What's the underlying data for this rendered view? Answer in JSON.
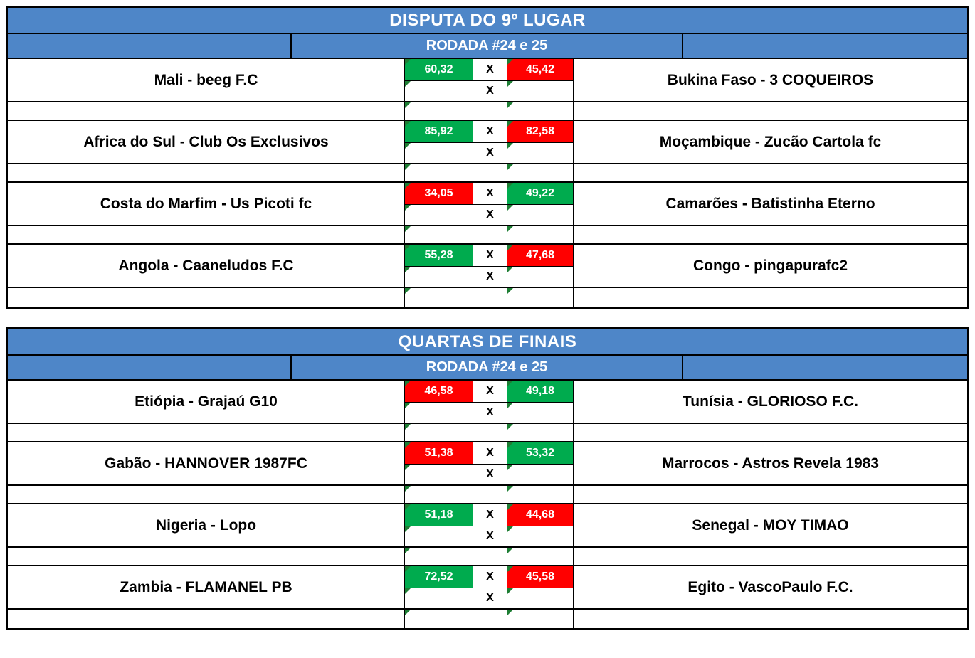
{
  "colors": {
    "header_blue": "#4E86C8",
    "win_green": "#00AB4E",
    "loss_red": "#FF0000",
    "triangle_green": "#1E7E34"
  },
  "sections": [
    {
      "title": "DISPUTA DO 9º LUGAR",
      "round_label": "RODADA #24 e 25",
      "x_label": "X",
      "matches": [
        {
          "home": "Mali - beeg F.C",
          "home_score": "60,32",
          "home_result": "win",
          "away_score": "45,42",
          "away_result": "loss",
          "away": "Bukina Faso - 3 COQUEIROS"
        },
        {
          "home": "Africa do Sul - Club Os Exclusivos",
          "home_score": "85,92",
          "home_result": "win",
          "away_score": "82,58",
          "away_result": "loss",
          "away": "Moçambique - Zucão Cartola fc"
        },
        {
          "home": "Costa do Marfim - Us Picoti fc",
          "home_score": "34,05",
          "home_result": "loss",
          "away_score": "49,22",
          "away_result": "win",
          "away": "Camarões - Batistinha Eterno"
        },
        {
          "home": "Angola - Caaneludos F.C",
          "home_score": "55,28",
          "home_result": "win",
          "away_score": "47,68",
          "away_result": "loss",
          "away": "Congo - pingapurafc2"
        }
      ]
    },
    {
      "title": "QUARTAS DE FINAIS",
      "round_label": "RODADA #24 e 25",
      "x_label": "X",
      "matches": [
        {
          "home": "Etiópia - Grajaú G10",
          "home_score": "46,58",
          "home_result": "loss",
          "away_score": "49,18",
          "away_result": "win",
          "away": "Tunísia - GLORIOSO F.C."
        },
        {
          "home": "Gabão  - HANNOVER 1987FC",
          "home_score": "51,38",
          "home_result": "loss",
          "away_score": "53,32",
          "away_result": "win",
          "away": "Marrocos - Astros Revela 1983"
        },
        {
          "home": "Nigeria - Lopo",
          "home_score": "51,18",
          "home_result": "win",
          "away_score": "44,68",
          "away_result": "loss",
          "away": "Senegal - MOY TIMAO"
        },
        {
          "home": "Zambia - FLAMANEL PB",
          "home_score": "72,52",
          "home_result": "win",
          "away_score": "45,58",
          "away_result": "loss",
          "away": "Egito - VascoPaulo F.C."
        }
      ]
    }
  ]
}
